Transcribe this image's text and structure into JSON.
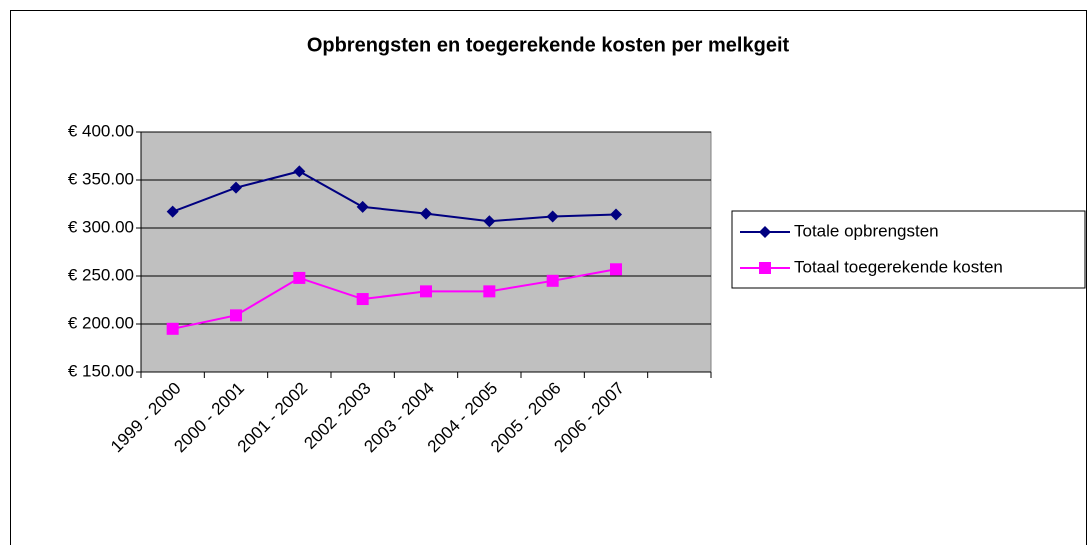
{
  "chart_data": {
    "type": "line",
    "title": "Opbrengsten en toegerekende kosten per melkgeit",
    "categories": [
      "1999 - 2000",
      "2000 - 2001",
      "2001 - 2002",
      "2002 -2003",
      "2003 - 2004",
      "2004 - 2005",
      "2005 - 2006",
      "2006 - 2007",
      null
    ],
    "series": [
      {
        "name": "Totale opbrengsten",
        "color": "#000080",
        "marker": "diamond",
        "values": [
          317,
          342,
          359,
          322,
          315,
          307,
          312,
          314,
          null
        ]
      },
      {
        "name": "Totaal toegerekende kosten",
        "color": "#ff00ff",
        "marker": "square",
        "values": [
          195,
          209,
          248,
          226,
          234,
          234,
          245,
          257,
          null
        ]
      }
    ],
    "ylim": [
      150,
      400
    ],
    "yticks": [
      {
        "value": 150,
        "label": "€ 150.00"
      },
      {
        "value": 200,
        "label": "€ 200.00"
      },
      {
        "value": 250,
        "label": "€ 250.00"
      },
      {
        "value": 300,
        "label": "€ 300.00"
      },
      {
        "value": 350,
        "label": "€ 350.00"
      },
      {
        "value": 400,
        "label": "€ 400.00"
      }
    ],
    "grid": true,
    "legend": "right"
  }
}
